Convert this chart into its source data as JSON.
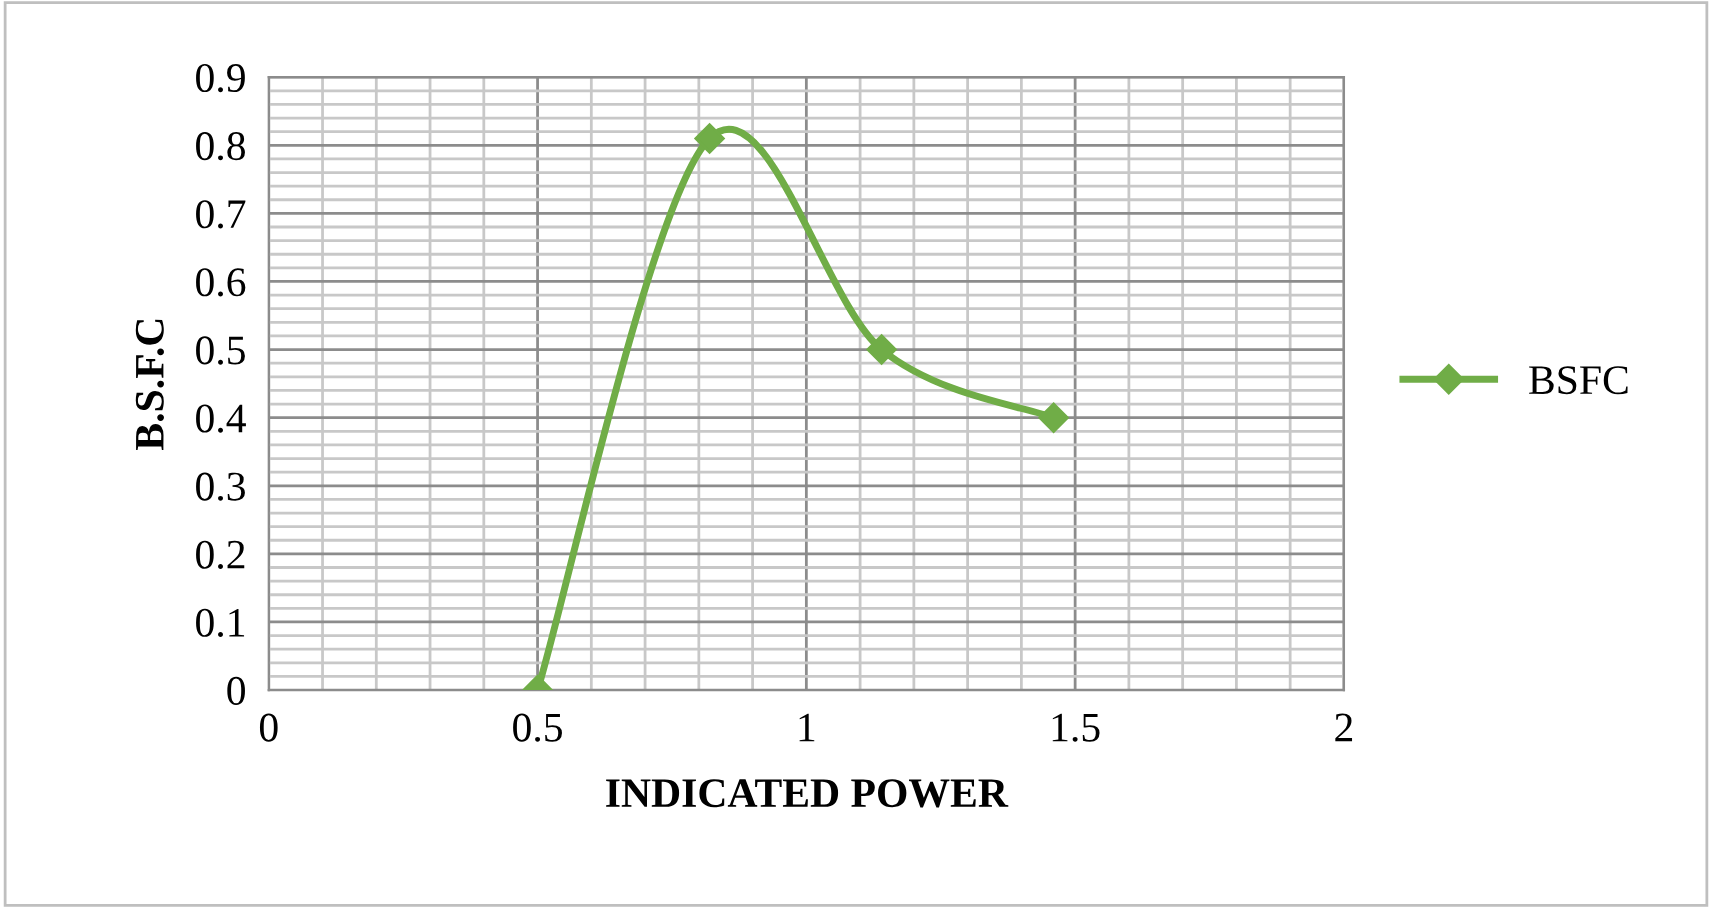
{
  "chart_data": {
    "type": "line",
    "xlabel": "INDICATED POWER",
    "ylabel": "B.S.F.C",
    "x": [
      0.5,
      0.82,
      1.14,
      1.46
    ],
    "series": [
      {
        "name": "BSFC",
        "color": "#70ad47",
        "values": [
          0,
          0.81,
          0.5,
          0.4
        ]
      }
    ],
    "xlim": [
      0,
      2
    ],
    "xticks": [
      0,
      0.5,
      1,
      1.5,
      2
    ],
    "ylim": [
      0,
      0.9
    ],
    "yticks": [
      0,
      0.1,
      0.2,
      0.3,
      0.4,
      0.5,
      0.6,
      0.7,
      0.8,
      0.9
    ],
    "grid": true,
    "legend": "right",
    "marker": "diamond",
    "line_style": "solid"
  }
}
